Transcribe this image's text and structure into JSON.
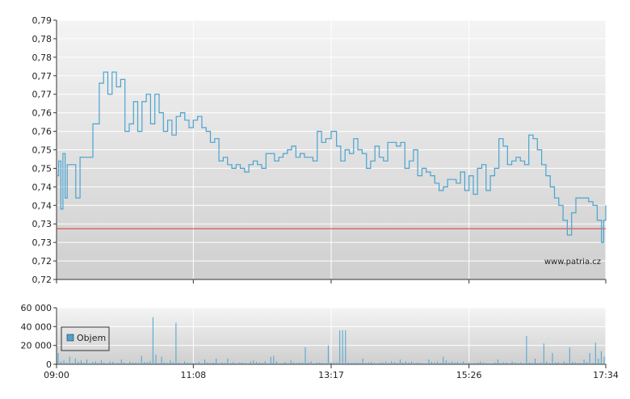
{
  "chart_data": [
    {
      "type": "line",
      "watermark": "www.patria.cz",
      "ylim": [
        0.72,
        0.79
      ],
      "y_tick_labels": [
        "0,79",
        "0,78",
        "0,78",
        "0,77",
        "0,77",
        "0,76",
        "0,76",
        "0,75",
        "0,75",
        "0,74",
        "0,74",
        "0,73",
        "0,73",
        "0,72",
        "0,72"
      ],
      "x_tick_labels": [
        "09:00",
        "11:08",
        "13:17",
        "15:26",
        "17:34"
      ],
      "reference_line": {
        "value": 0.7337,
        "color": "#e03030"
      },
      "series": [
        {
          "color": "#4aa3d0",
          "x": [
            "09:00",
            "09:02",
            "09:04",
            "09:06",
            "09:08",
            "09:10",
            "09:14",
            "09:18",
            "09:22",
            "09:30",
            "09:34",
            "09:40",
            "09:44",
            "09:48",
            "09:52",
            "09:56",
            "10:00",
            "10:04",
            "10:08",
            "10:12",
            "10:16",
            "10:20",
            "10:24",
            "10:28",
            "10:32",
            "10:36",
            "10:40",
            "10:44",
            "10:48",
            "10:52",
            "10:56",
            "11:00",
            "11:04",
            "11:08",
            "11:12",
            "11:16",
            "11:20",
            "11:24",
            "11:28",
            "11:32",
            "11:36",
            "11:40",
            "11:44",
            "11:48",
            "11:52",
            "11:56",
            "12:00",
            "12:04",
            "12:08",
            "12:12",
            "12:16",
            "12:20",
            "12:24",
            "12:28",
            "12:32",
            "12:36",
            "12:40",
            "12:44",
            "12:48",
            "12:52",
            "12:56",
            "13:00",
            "13:04",
            "13:08",
            "13:12",
            "13:17",
            "13:22",
            "13:26",
            "13:30",
            "13:34",
            "13:38",
            "13:42",
            "13:46",
            "13:50",
            "13:54",
            "13:58",
            "14:02",
            "14:06",
            "14:10",
            "14:14",
            "14:18",
            "14:22",
            "14:26",
            "14:30",
            "14:34",
            "14:38",
            "14:42",
            "14:46",
            "14:50",
            "14:54",
            "14:58",
            "15:02",
            "15:06",
            "15:10",
            "15:14",
            "15:18",
            "15:22",
            "15:26",
            "15:30",
            "15:34",
            "15:38",
            "15:42",
            "15:46",
            "15:50",
            "15:54",
            "15:58",
            "16:02",
            "16:06",
            "16:10",
            "16:14",
            "16:18",
            "16:22",
            "16:26",
            "16:30",
            "16:34",
            "16:38",
            "16:42",
            "16:46",
            "16:50",
            "16:54",
            "16:58",
            "17:02",
            "17:06",
            "17:10",
            "17:14",
            "17:18",
            "17:22",
            "17:26",
            "17:30",
            "17:32",
            "17:34"
          ],
          "values": [
            0.748,
            0.752,
            0.739,
            0.754,
            0.742,
            0.751,
            0.751,
            0.742,
            0.753,
            0.753,
            0.762,
            0.773,
            0.776,
            0.77,
            0.776,
            0.772,
            0.774,
            0.76,
            0.762,
            0.768,
            0.76,
            0.768,
            0.77,
            0.762,
            0.77,
            0.765,
            0.76,
            0.763,
            0.759,
            0.764,
            0.765,
            0.763,
            0.761,
            0.763,
            0.764,
            0.761,
            0.76,
            0.757,
            0.758,
            0.752,
            0.753,
            0.751,
            0.75,
            0.751,
            0.75,
            0.749,
            0.751,
            0.752,
            0.751,
            0.75,
            0.754,
            0.754,
            0.752,
            0.753,
            0.754,
            0.755,
            0.756,
            0.753,
            0.754,
            0.753,
            0.753,
            0.752,
            0.76,
            0.757,
            0.758,
            0.76,
            0.756,
            0.752,
            0.755,
            0.754,
            0.758,
            0.755,
            0.754,
            0.75,
            0.752,
            0.756,
            0.753,
            0.752,
            0.757,
            0.757,
            0.756,
            0.757,
            0.75,
            0.752,
            0.755,
            0.748,
            0.75,
            0.749,
            0.748,
            0.746,
            0.744,
            0.745,
            0.747,
            0.747,
            0.746,
            0.749,
            0.744,
            0.748,
            0.743,
            0.75,
            0.751,
            0.744,
            0.748,
            0.75,
            0.758,
            0.756,
            0.751,
            0.752,
            0.753,
            0.752,
            0.751,
            0.759,
            0.758,
            0.755,
            0.751,
            0.748,
            0.745,
            0.742,
            0.74,
            0.736,
            0.732,
            0.738,
            0.742,
            0.742,
            0.742,
            0.741,
            0.74,
            0.736,
            0.73,
            0.736,
            0.74
          ]
        }
      ]
    },
    {
      "type": "bar",
      "ylim": [
        0,
        60000
      ],
      "y_tick_labels": [
        "60 000",
        "40 000",
        "20 000",
        "0"
      ],
      "x_tick_labels": [
        "09:00",
        "11:08",
        "13:17",
        "15:26",
        "17:34"
      ],
      "legend": {
        "label": "Objem",
        "position": "top-left",
        "color": "#4aa3d0"
      },
      "series": [
        {
          "name": "Objem",
          "color": "#4aa3d0",
          "values": [
            12000,
            3000,
            4000,
            2000,
            8000,
            1500,
            6000,
            3000,
            4000,
            2000,
            5000,
            1000,
            2500,
            3000,
            1500,
            4000,
            2000,
            1000,
            3000,
            2500,
            1200,
            1500,
            5000,
            2000,
            1000,
            3000,
            2000,
            2000,
            1500,
            9000,
            2500,
            2500,
            3500,
            50000,
            10000,
            1000,
            8000,
            2000,
            1500,
            4000,
            2000,
            44000,
            2000,
            1000,
            3000,
            2000,
            1500,
            1500,
            1500,
            2500,
            1000,
            5000,
            2000,
            1500,
            2000,
            6000,
            1000,
            2000,
            1500,
            6000,
            1200,
            2500,
            1000,
            2000,
            2000,
            1500,
            1000,
            3000,
            4000,
            2500,
            2000,
            1500,
            3000,
            1000,
            8000,
            9000,
            3000,
            1000,
            1200,
            2500,
            1000,
            4000,
            2000,
            1500,
            2000,
            2000,
            18000,
            2000,
            3000,
            1000,
            2000,
            2000,
            1500,
            1000,
            20000,
            2000,
            2000,
            2000,
            36000,
            36000,
            36000,
            2000,
            1500,
            2000,
            2000,
            1500,
            6000,
            1500,
            2000,
            2500,
            1500,
            1000,
            2000,
            2000,
            3000,
            1500,
            3000,
            2500,
            1500,
            5000,
            2000,
            3000,
            2000,
            3000,
            1500,
            2000,
            1500,
            1200,
            1000,
            5000,
            2500,
            2000,
            3000,
            1500,
            8000,
            4000,
            2000,
            3000,
            2000,
            2500,
            1500,
            3000,
            1000,
            2000,
            1000,
            1500,
            2000,
            3000,
            2000,
            1500,
            1000,
            1000,
            2000,
            5000,
            1500,
            2000,
            2000,
            1000,
            3000,
            2000,
            1500,
            2000,
            1000,
            30000,
            2000,
            1500,
            6000,
            1000,
            2000,
            22000,
            3000,
            1500,
            12000,
            2000,
            2500,
            1000,
            3000,
            1500,
            18000,
            2500,
            2000,
            1500,
            1500,
            5000,
            2500,
            12000,
            1500,
            23000,
            6000,
            14000,
            8000
          ]
        }
      ]
    }
  ]
}
